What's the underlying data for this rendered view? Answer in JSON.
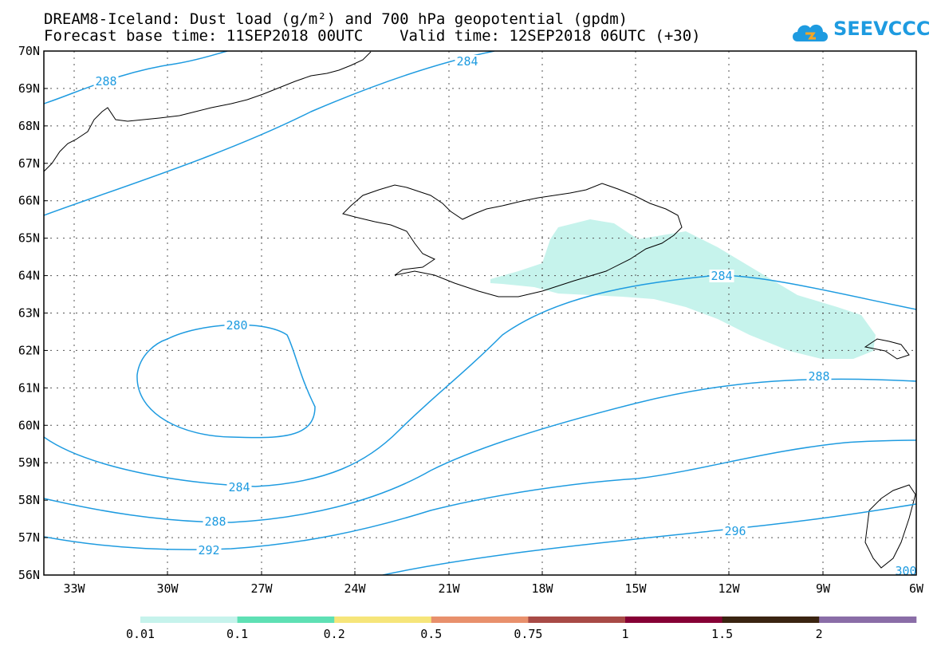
{
  "title_line1": "DREAM8-Iceland: Dust load (g/m²) and 700 hPa geopotential (gpdm)",
  "title_line2": "Forecast base time: 11SEP2018 00UTC    Valid time: 12SEP2018 06UTC (+30)",
  "logo": {
    "text": "SEEVCCC",
    "icon": "cloud-icon"
  },
  "lat_labels": [
    "70N",
    "69N",
    "68N",
    "67N",
    "66N",
    "65N",
    "64N",
    "63N",
    "62N",
    "61N",
    "60N",
    "59N",
    "58N",
    "57N",
    "56N"
  ],
  "lon_labels": [
    "33W",
    "30W",
    "27W",
    "24W",
    "21W",
    "18W",
    "15W",
    "12W",
    "9W",
    "6W"
  ],
  "contour_labels": [
    "288",
    "284",
    "280",
    "284",
    "288",
    "292",
    "284",
    "288",
    "296",
    "300"
  ],
  "legend": {
    "labels": [
      "0.01",
      "0.1",
      "0.2",
      "0.5",
      "0.75",
      "1",
      "1.5",
      "2"
    ],
    "colors": [
      "#c6f3ec",
      "#5ee0b4",
      "#f6e57a",
      "#e8906c",
      "#a84a46",
      "#860035",
      "#3a2411",
      "#8a6da7"
    ]
  },
  "colors": {
    "contour": "#1e9be0",
    "dust": "#c6f3ec",
    "coast": "#000000"
  }
}
